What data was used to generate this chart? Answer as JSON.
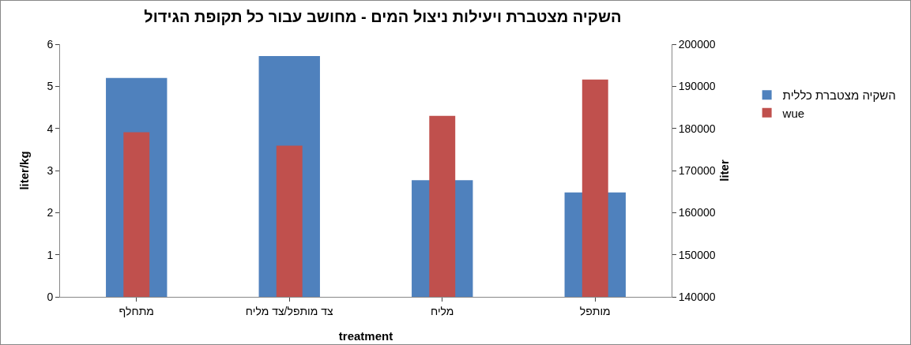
{
  "chart_data": {
    "type": "bar",
    "title": "השקיה מצטברת ויעילות ניצול המים - מחושב עבור כל תקופת הגידול",
    "xlabel": "treatment",
    "ylabel": "liter/kg",
    "y2label": "liter",
    "categories": [
      "מתחלף",
      "צד מותפל/צד מליח",
      "מליח",
      "מותפל"
    ],
    "series": [
      {
        "name": "השקיה מצטברת כללית",
        "color": "#4f81bd",
        "axis": "y2",
        "values": [
          192000,
          197200,
          167700,
          164800
        ]
      },
      {
        "name": "wue",
        "color": "#c0504d",
        "values": [
          3.91,
          3.59,
          4.3,
          5.16
        ]
      }
    ],
    "ylim": [
      0,
      6
    ],
    "yticks": [
      0,
      1,
      2,
      3,
      4,
      5,
      6
    ],
    "y2lim": [
      140000,
      200000
    ],
    "y2ticks": [
      140000,
      150000,
      160000,
      170000,
      180000,
      190000,
      200000
    ],
    "grid": false,
    "legend": "right"
  }
}
